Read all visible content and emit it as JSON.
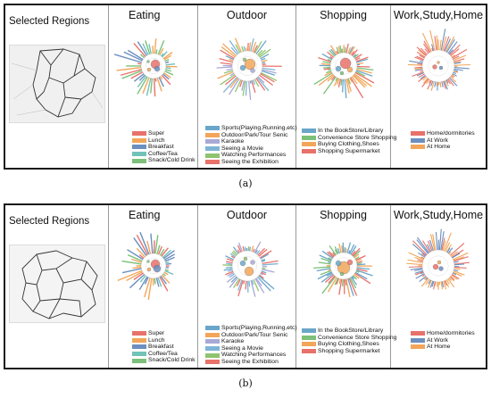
{
  "panels": {
    "regions": "Selected Regions",
    "eating": "Eating",
    "outdoor": "Outdoor",
    "shopping": "Shopping",
    "work": "Work,Study,Home"
  },
  "legends": {
    "eating": [
      {
        "label": "Super",
        "color": "#e8726a"
      },
      {
        "label": "Lunch",
        "color": "#f2a65a"
      },
      {
        "label": "Breakfast",
        "color": "#6b8fbf"
      },
      {
        "label": "Coffee/Tea",
        "color": "#72c2b8"
      },
      {
        "label": "Snack/Cold Drink",
        "color": "#7dc07a"
      }
    ],
    "outdoor": [
      {
        "label": "Sports(Playing,Running,etc)",
        "color": "#6aa6c9"
      },
      {
        "label": "Outdoor/Park/Tour Senic",
        "color": "#f2a65a"
      },
      {
        "label": "Karaoke",
        "color": "#a9a9d6"
      },
      {
        "label": "Seeing a Movie",
        "color": "#7fb4d6"
      },
      {
        "label": "Watching Performances",
        "color": "#8fc46e"
      },
      {
        "label": "Seeing the Exhibition",
        "color": "#e8726a"
      }
    ],
    "shopping": [
      {
        "label": "In the BookStore/Library",
        "color": "#6aa6c9"
      },
      {
        "label": "Convenience Store Shopping",
        "color": "#7dc07a"
      },
      {
        "label": "Buying Clothing,Shoes",
        "color": "#f2a65a"
      },
      {
        "label": "Shopping Supermarket",
        "color": "#e8726a"
      }
    ],
    "work": [
      {
        "label": "Home/dormitories",
        "color": "#e8726a"
      },
      {
        "label": "At Work",
        "color": "#6b8fbf"
      },
      {
        "label": "At Home",
        "color": "#f2a65a"
      }
    ]
  },
  "captions": {
    "a": "(a)",
    "b": "(b)"
  }
}
